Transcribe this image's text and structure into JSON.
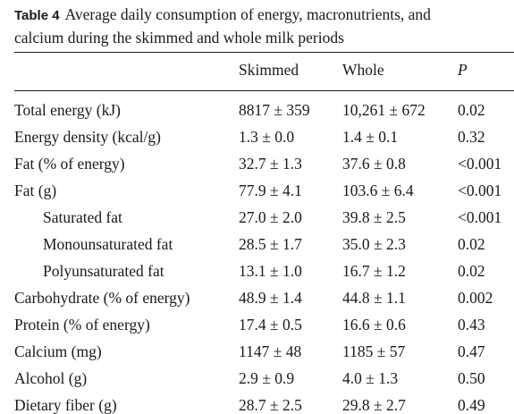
{
  "caption": {
    "label": "Table 4",
    "line1": "Average daily consumption of energy, macronutrients, and",
    "line2": "calcium during the skimmed and whole milk periods"
  },
  "columns": [
    "",
    "Skimmed",
    "Whole",
    "P"
  ],
  "rows": [
    {
      "label": "Total energy (kJ)",
      "skimmed": "8817 ± 359",
      "whole": "10,261 ± 672",
      "p": "0.02",
      "indent": false
    },
    {
      "label": "Energy density (kcal/g)",
      "skimmed": "1.3 ± 0.0",
      "whole": "1.4 ± 0.1",
      "p": "0.32",
      "indent": false
    },
    {
      "label": "Fat (% of energy)",
      "skimmed": "32.7 ± 1.3",
      "whole": "37.6 ± 0.8",
      "p": "<0.001",
      "indent": false
    },
    {
      "label": "Fat (g)",
      "skimmed": "77.9 ± 4.1",
      "whole": "103.6 ± 6.4",
      "p": "<0.001",
      "indent": false
    },
    {
      "label": "Saturated fat",
      "skimmed": "27.0 ± 2.0",
      "whole": "39.8 ± 2.5",
      "p": "<0.001",
      "indent": true
    },
    {
      "label": "Monounsaturated fat",
      "skimmed": "28.5 ± 1.7",
      "whole": "35.0 ± 2.3",
      "p": "0.02",
      "indent": true
    },
    {
      "label": "Polyunsaturated fat",
      "skimmed": "13.1 ± 1.0",
      "whole": "16.7 ± 1.2",
      "p": "0.02",
      "indent": true
    },
    {
      "label": "Carbohydrate (% of energy)",
      "skimmed": "48.9 ± 1.4",
      "whole": "44.8 ± 1.1",
      "p": "0.002",
      "indent": false
    },
    {
      "label": "Protein (% of energy)",
      "skimmed": "17.4 ± 0.5",
      "whole": "16.6 ± 0.6",
      "p": "0.43",
      "indent": false
    },
    {
      "label": "Calcium (mg)",
      "skimmed": "1147 ± 48",
      "whole": "1185 ± 57",
      "p": "0.47",
      "indent": false
    },
    {
      "label": "Alcohol (g)",
      "skimmed": "2.9 ± 0.9",
      "whole": "4.0 ± 1.3",
      "p": "0.50",
      "indent": false
    },
    {
      "label": "Dietary fiber (g)",
      "skimmed": "28.7 ± 2.5",
      "whole": "29.8 ± 2.7",
      "p": "0.49",
      "indent": false
    }
  ]
}
